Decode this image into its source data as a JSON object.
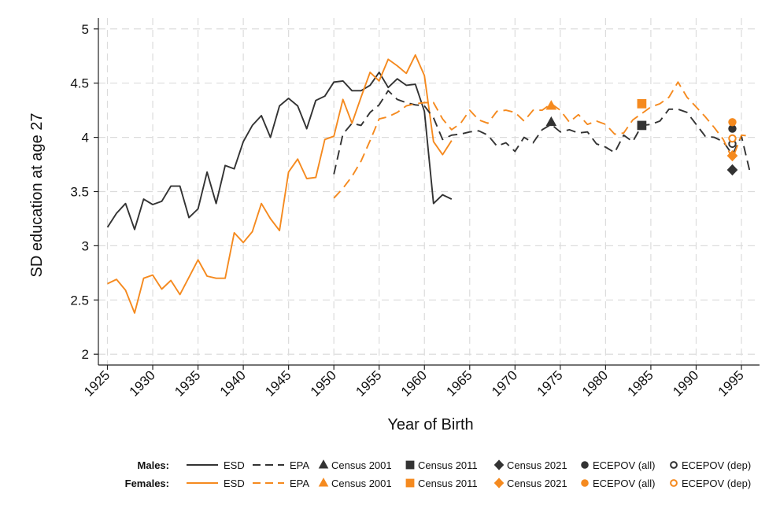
{
  "chart_data": {
    "type": "line",
    "xlabel": "Year of Birth",
    "ylabel": "SD education at age 27",
    "xlim": [
      1924,
      1997
    ],
    "ylim": [
      1.9,
      5.1
    ],
    "x_ticks": [
      1925,
      1930,
      1935,
      1940,
      1945,
      1950,
      1955,
      1960,
      1965,
      1970,
      1975,
      1980,
      1985,
      1990,
      1995
    ],
    "x_tick_labels": [
      "1925",
      "1930",
      "1935",
      "1940",
      "1945",
      "1950",
      "1955",
      "1960",
      "1965",
      "1970",
      "1975",
      "1980",
      "1985",
      "1990",
      "1995"
    ],
    "y_ticks": [
      2,
      2.5,
      3,
      3.5,
      4,
      4.5,
      5
    ],
    "y_tick_labels": [
      "2",
      "2.5",
      "3",
      "3.5",
      "4",
      "4.5",
      "5"
    ],
    "grid": true,
    "colors": {
      "males": "#333333",
      "females": "#f58a1f"
    },
    "series": [
      {
        "name": "ESD",
        "group": "Males",
        "style": "solid",
        "x": [
          1925,
          1926,
          1927,
          1928,
          1929,
          1930,
          1931,
          1932,
          1933,
          1934,
          1935,
          1936,
          1937,
          1938,
          1939,
          1940,
          1941,
          1942,
          1943,
          1944,
          1945,
          1946,
          1947,
          1948,
          1949,
          1950,
          1951,
          1952,
          1953,
          1954,
          1955,
          1956,
          1957,
          1958,
          1959,
          1960,
          1961,
          1962,
          1963
        ],
        "values": [
          3.17,
          3.3,
          3.39,
          3.15,
          3.43,
          3.38,
          3.41,
          3.55,
          3.55,
          3.26,
          3.34,
          3.68,
          3.39,
          3.74,
          3.71,
          3.96,
          4.11,
          4.2,
          4.0,
          4.29,
          4.36,
          4.29,
          4.08,
          4.34,
          4.38,
          4.51,
          4.52,
          4.43,
          4.43,
          4.48,
          4.6,
          4.46,
          4.54,
          4.48,
          4.49,
          4.24,
          3.39,
          3.47,
          3.43
        ]
      },
      {
        "name": "ESD",
        "group": "Females",
        "style": "solid",
        "x": [
          1925,
          1926,
          1927,
          1928,
          1929,
          1930,
          1931,
          1932,
          1933,
          1934,
          1935,
          1936,
          1937,
          1938,
          1939,
          1940,
          1941,
          1942,
          1943,
          1944,
          1945,
          1946,
          1947,
          1948,
          1949,
          1950,
          1951,
          1952,
          1953,
          1954,
          1955,
          1956,
          1957,
          1958,
          1959,
          1960,
          1961,
          1962,
          1963
        ],
        "values": [
          2.65,
          2.69,
          2.59,
          2.38,
          2.7,
          2.73,
          2.6,
          2.68,
          2.55,
          2.71,
          2.87,
          2.72,
          2.7,
          2.7,
          3.12,
          3.03,
          3.13,
          3.39,
          3.25,
          3.14,
          3.68,
          3.8,
          3.62,
          3.63,
          3.98,
          4.01,
          4.35,
          4.13,
          4.37,
          4.6,
          4.52,
          4.72,
          4.66,
          4.59,
          4.76,
          4.57,
          3.96,
          3.84,
          3.97
        ]
      },
      {
        "name": "EPA",
        "group": "Males",
        "style": "dashed",
        "x": [
          1950,
          1951,
          1952,
          1953,
          1954,
          1955,
          1956,
          1957,
          1958,
          1959,
          1960,
          1961,
          1962,
          1963,
          1964,
          1965,
          1966,
          1967,
          1968,
          1969,
          1970,
          1971,
          1972,
          1973,
          1974,
          1975,
          1976,
          1977,
          1978,
          1979,
          1980,
          1981,
          1982,
          1983,
          1984,
          1985,
          1986,
          1987,
          1988,
          1989,
          1990,
          1991,
          1992,
          1993,
          1994,
          1995,
          1996
        ],
        "values": [
          3.66,
          4.03,
          4.13,
          4.11,
          4.23,
          4.3,
          4.43,
          4.35,
          4.32,
          4.3,
          4.29,
          4.18,
          3.98,
          4.02,
          4.03,
          4.05,
          4.06,
          4.02,
          3.92,
          3.95,
          3.87,
          4.0,
          3.95,
          4.07,
          4.12,
          4.05,
          4.07,
          4.04,
          4.05,
          3.94,
          3.91,
          3.86,
          4.02,
          3.96,
          4.11,
          4.12,
          4.15,
          4.26,
          4.26,
          4.23,
          4.12,
          4.01,
          4.0,
          3.96,
          3.84,
          4.01,
          3.66
        ]
      },
      {
        "name": "EPA",
        "group": "Females",
        "style": "dashed",
        "x": [
          1950,
          1951,
          1952,
          1953,
          1954,
          1955,
          1956,
          1957,
          1958,
          1959,
          1960,
          1961,
          1962,
          1963,
          1964,
          1965,
          1966,
          1967,
          1968,
          1969,
          1970,
          1971,
          1972,
          1973,
          1974,
          1975,
          1976,
          1977,
          1978,
          1979,
          1980,
          1981,
          1982,
          1983,
          1984,
          1985,
          1986,
          1987,
          1988,
          1989,
          1990,
          1991,
          1992,
          1993,
          1994,
          1995,
          1996
        ],
        "values": [
          3.44,
          3.53,
          3.64,
          3.78,
          3.97,
          4.17,
          4.19,
          4.23,
          4.29,
          4.31,
          4.32,
          4.32,
          4.17,
          4.07,
          4.13,
          4.25,
          4.16,
          4.13,
          4.24,
          4.25,
          4.23,
          4.15,
          4.25,
          4.25,
          4.31,
          4.25,
          4.14,
          4.21,
          4.12,
          4.15,
          4.12,
          4.03,
          4.04,
          4.16,
          4.22,
          4.28,
          4.31,
          4.37,
          4.51,
          4.37,
          4.28,
          4.19,
          4.09,
          3.98,
          3.8,
          4.02,
          4.01
        ]
      }
    ],
    "markers": [
      {
        "name": "Census 2001",
        "group": "Males",
        "shape": "triangle",
        "filled": true,
        "x": 1974,
        "y": 4.14
      },
      {
        "name": "Census 2001",
        "group": "Females",
        "shape": "triangle",
        "filled": true,
        "x": 1974,
        "y": 4.29
      },
      {
        "name": "Census 2011",
        "group": "Males",
        "shape": "square",
        "filled": true,
        "x": 1984,
        "y": 4.11
      },
      {
        "name": "Census 2011",
        "group": "Females",
        "shape": "square",
        "filled": true,
        "x": 1984,
        "y": 4.31
      },
      {
        "name": "Census 2021",
        "group": "Males",
        "shape": "diamond",
        "filled": true,
        "x": 1994,
        "y": 3.7
      },
      {
        "name": "Census 2021",
        "group": "Females",
        "shape": "diamond",
        "filled": true,
        "x": 1994,
        "y": 3.83
      },
      {
        "name": "ECEPOV (all)",
        "group": "Males",
        "shape": "circle",
        "filled": true,
        "x": 1994,
        "y": 4.08
      },
      {
        "name": "ECEPOV (all)",
        "group": "Females",
        "shape": "circle",
        "filled": true,
        "x": 1994,
        "y": 4.14
      },
      {
        "name": "ECEPOV (dep)",
        "group": "Males",
        "shape": "circle",
        "filled": false,
        "x": 1994,
        "y": 3.94
      },
      {
        "name": "ECEPOV (dep)",
        "group": "Females",
        "shape": "circle",
        "filled": false,
        "x": 1994,
        "y": 3.99
      }
    ],
    "legend": {
      "placement": "bottom",
      "rows": [
        {
          "label": "Males:",
          "group": "Males",
          "items": [
            {
              "label": "ESD",
              "kind": "line-solid"
            },
            {
              "label": "EPA",
              "kind": "line-dashed"
            },
            {
              "label": "Census 2001",
              "kind": "triangle"
            },
            {
              "label": "Census 2011",
              "kind": "square"
            },
            {
              "label": "Census 2021",
              "kind": "diamond"
            },
            {
              "label": "ECEPOV (all)",
              "kind": "circle-filled"
            },
            {
              "label": "ECEPOV (dep)",
              "kind": "circle-open"
            }
          ]
        },
        {
          "label": "Females:",
          "group": "Females",
          "items": [
            {
              "label": "ESD",
              "kind": "line-solid"
            },
            {
              "label": "EPA",
              "kind": "line-dashed"
            },
            {
              "label": "Census 2001",
              "kind": "triangle"
            },
            {
              "label": "Census 2011",
              "kind": "square"
            },
            {
              "label": "Census 2021",
              "kind": "diamond"
            },
            {
              "label": "ECEPOV (all)",
              "kind": "circle-filled"
            },
            {
              "label": "ECEPOV (dep)",
              "kind": "circle-open"
            }
          ]
        }
      ]
    }
  }
}
